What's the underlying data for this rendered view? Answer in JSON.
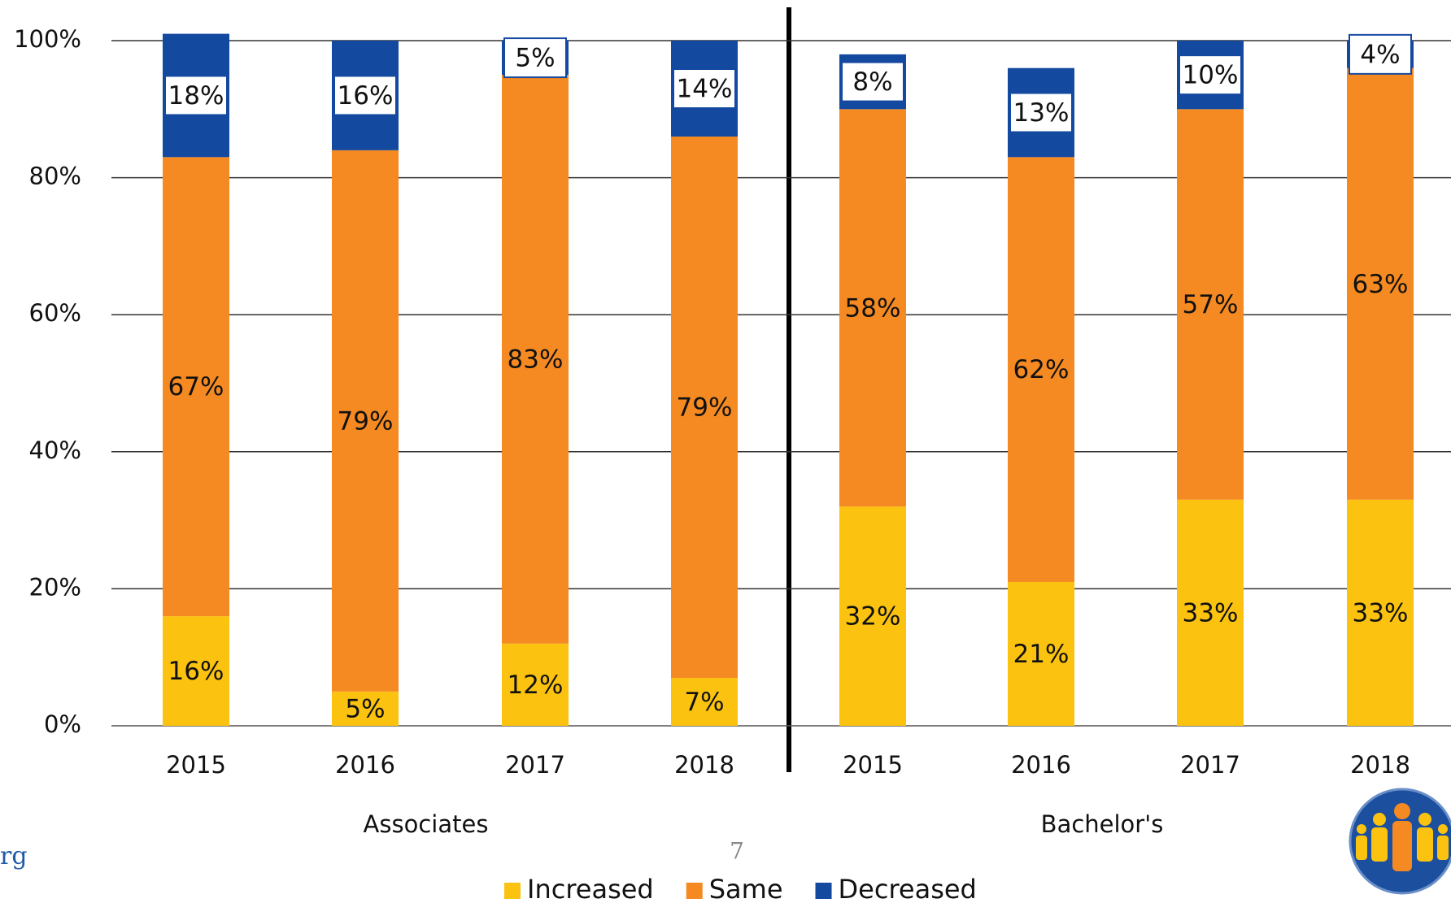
{
  "chart_data": {
    "type": "stacked_bar",
    "categories": [
      "2015",
      "2016",
      "2017",
      "2018",
      "2015",
      "2016",
      "2017",
      "2018"
    ],
    "groups": [
      "Associates",
      "Bachelor's"
    ],
    "series": [
      {
        "name": "Increased",
        "color": "#fbc30f",
        "values": [
          16,
          5,
          12,
          7,
          32,
          21,
          33,
          33
        ],
        "value_labels": [
          "16%",
          "5%",
          "12%",
          "7%",
          "32%",
          "21%",
          "33%",
          "33%"
        ]
      },
      {
        "name": "Same",
        "color": "#f58a22",
        "values": [
          67,
          79,
          83,
          79,
          58,
          62,
          57,
          63
        ],
        "value_labels": [
          "67%",
          "79%",
          "83%",
          "79%",
          "58%",
          "62%",
          "57%",
          "63%"
        ]
      },
      {
        "name": "Decreased",
        "color": "#1449a0",
        "values": [
          18,
          16,
          5,
          14,
          8,
          13,
          10,
          4
        ],
        "value_labels": [
          "18%",
          "16%",
          "5%",
          "14%",
          "8%",
          "13%",
          "10%",
          "4%"
        ]
      }
    ],
    "ylim": [
      0,
      100
    ],
    "yticks": [
      {
        "value": 0,
        "label": "0%"
      },
      {
        "value": 20,
        "label": "20%"
      },
      {
        "value": 40,
        "label": "40%"
      },
      {
        "value": 60,
        "label": "60%"
      },
      {
        "value": 80,
        "label": "80%"
      },
      {
        "value": 100,
        "label": "100%"
      }
    ],
    "grid": true,
    "legend": "bottom"
  },
  "footer": {
    "page_number": "7",
    "link_fragment": "rg"
  }
}
